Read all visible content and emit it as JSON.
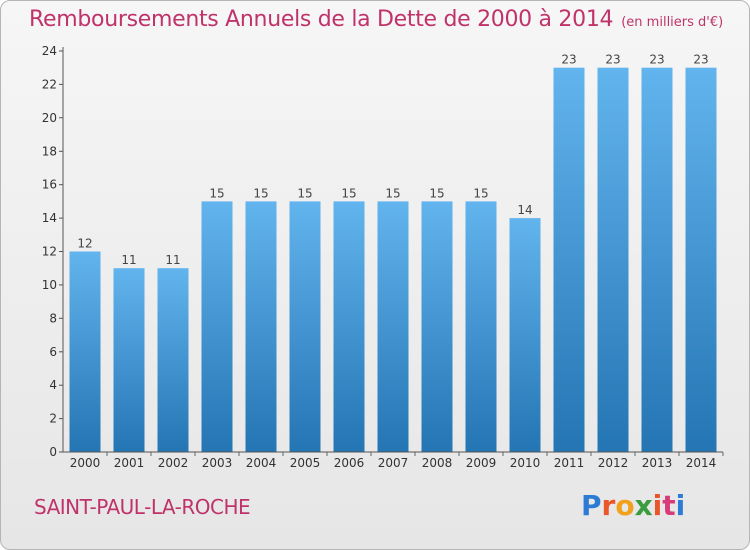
{
  "header": {
    "title": "Remboursements Annuels de la Dette de 2000 à 2014",
    "unit": "(en milliers d'€)"
  },
  "footer": {
    "commune": "SAINT-PAUL-LA-ROCHE",
    "brand": "Proxiti"
  },
  "colors": {
    "bar_top": "#62b4ee",
    "bar_bottom": "#2475b3",
    "title": "#c0336a",
    "brand_letters": [
      "#2e7bd6",
      "#e8562a",
      "#f1a11b",
      "#3a9b3f",
      "#e8562a",
      "#d93a7a",
      "#2e7bd6"
    ]
  },
  "chart_data": {
    "type": "bar",
    "title": "Remboursements Annuels de la Dette de 2000 à 2014",
    "categories": [
      "2000",
      "2001",
      "2002",
      "2003",
      "2004",
      "2005",
      "2006",
      "2007",
      "2008",
      "2009",
      "2010",
      "2011",
      "2012",
      "2013",
      "2014"
    ],
    "values": [
      12,
      11,
      11,
      15,
      15,
      15,
      15,
      15,
      15,
      15,
      14,
      23,
      23,
      23,
      23
    ],
    "ylim": [
      0,
      24
    ],
    "yticks": [
      0,
      2,
      4,
      6,
      8,
      10,
      12,
      14,
      16,
      18,
      20,
      22,
      24
    ],
    "grid": false,
    "legend": "none"
  }
}
